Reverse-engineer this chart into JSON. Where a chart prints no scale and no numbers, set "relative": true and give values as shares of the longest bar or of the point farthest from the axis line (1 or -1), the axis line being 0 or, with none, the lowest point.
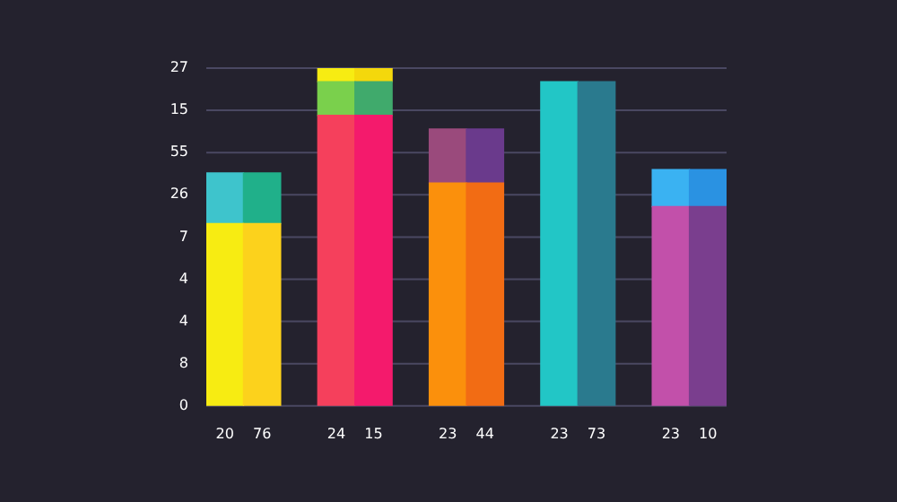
{
  "chart_data": {
    "type": "bar",
    "stacked": true,
    "relative": true,
    "categories": [
      "20",
      "76",
      null,
      "24",
      "15",
      null,
      "23",
      "44",
      null,
      "23",
      "73",
      null,
      "23",
      "10"
    ],
    "series": [
      {
        "colors": [
          "#f7ec12",
          "#fcd21c",
          null,
          "#f5405c",
          "#f41a6c",
          null,
          "#fb900c",
          "#f26c14",
          null,
          "#22c6c6",
          "#2a7a8e",
          null,
          "#c250aa",
          "#7a3e8e"
        ],
        "values": [
          0.54,
          0.54,
          null,
          0.86,
          0.86,
          null,
          0.66,
          0.66,
          null,
          0.96,
          0.96,
          null,
          0.59,
          0.59
        ]
      },
      {
        "colors": [
          "#3ec4cc",
          "#20b08a",
          null,
          "#7ad04c",
          "#40aa6c",
          null,
          "#9a4a7c",
          "#6a3a8c",
          null,
          null,
          null,
          null,
          "#3ab2f2",
          "#2a92e2"
        ],
        "values": [
          0.15,
          0.15,
          null,
          0.1,
          0.1,
          null,
          0.16,
          0.16,
          null,
          null,
          null,
          null,
          0.11,
          0.11
        ]
      },
      {
        "colors": [
          null,
          null,
          null,
          "#f7ec12",
          "#f4d80c",
          null,
          null,
          null,
          null,
          null,
          null,
          null,
          null,
          null
        ],
        "values": [
          null,
          null,
          null,
          0.04,
          0.04,
          null,
          null,
          null,
          null,
          null,
          null,
          null,
          null,
          null
        ]
      }
    ],
    "annotations": [
      "27",
      "15",
      "55",
      "26",
      "7",
      "4",
      "4",
      "8",
      "0"
    ],
    "grid": "y",
    "legend": false
  }
}
